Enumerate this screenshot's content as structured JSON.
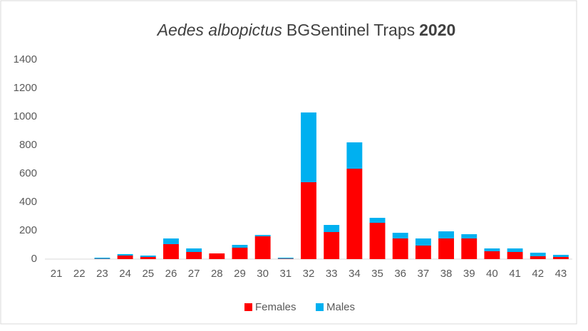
{
  "chart_data": {
    "type": "stacked_bar",
    "title": [
      "Aedes albopictus",
      "BGSentinel Traps",
      "2020"
    ],
    "title_styles": [
      "italic",
      "normal",
      "bold"
    ],
    "categories": [
      "21",
      "22",
      "23",
      "24",
      "25",
      "26",
      "27",
      "28",
      "29",
      "30",
      "31",
      "32",
      "33",
      "34",
      "35",
      "36",
      "37",
      "38",
      "39",
      "40",
      "41",
      "42",
      "43"
    ],
    "series": [
      {
        "name": "Females",
        "color": "#ff0000",
        "values": [
          0,
          0,
          2,
          25,
          15,
          105,
          50,
          40,
          80,
          160,
          3,
          540,
          190,
          635,
          255,
          145,
          95,
          145,
          145,
          55,
          50,
          20,
          15
        ]
      },
      {
        "name": "Males",
        "color": "#00b0f0",
        "values": [
          0,
          0,
          8,
          10,
          10,
          40,
          25,
          0,
          20,
          10,
          7,
          490,
          50,
          185,
          35,
          40,
          50,
          50,
          30,
          20,
          25,
          25,
          15
        ]
      }
    ],
    "ylim": [
      0,
      1400
    ],
    "yticks": [
      0,
      200,
      400,
      600,
      800,
      1000,
      1200,
      1400
    ],
    "grid": false,
    "legend": "bottom"
  }
}
